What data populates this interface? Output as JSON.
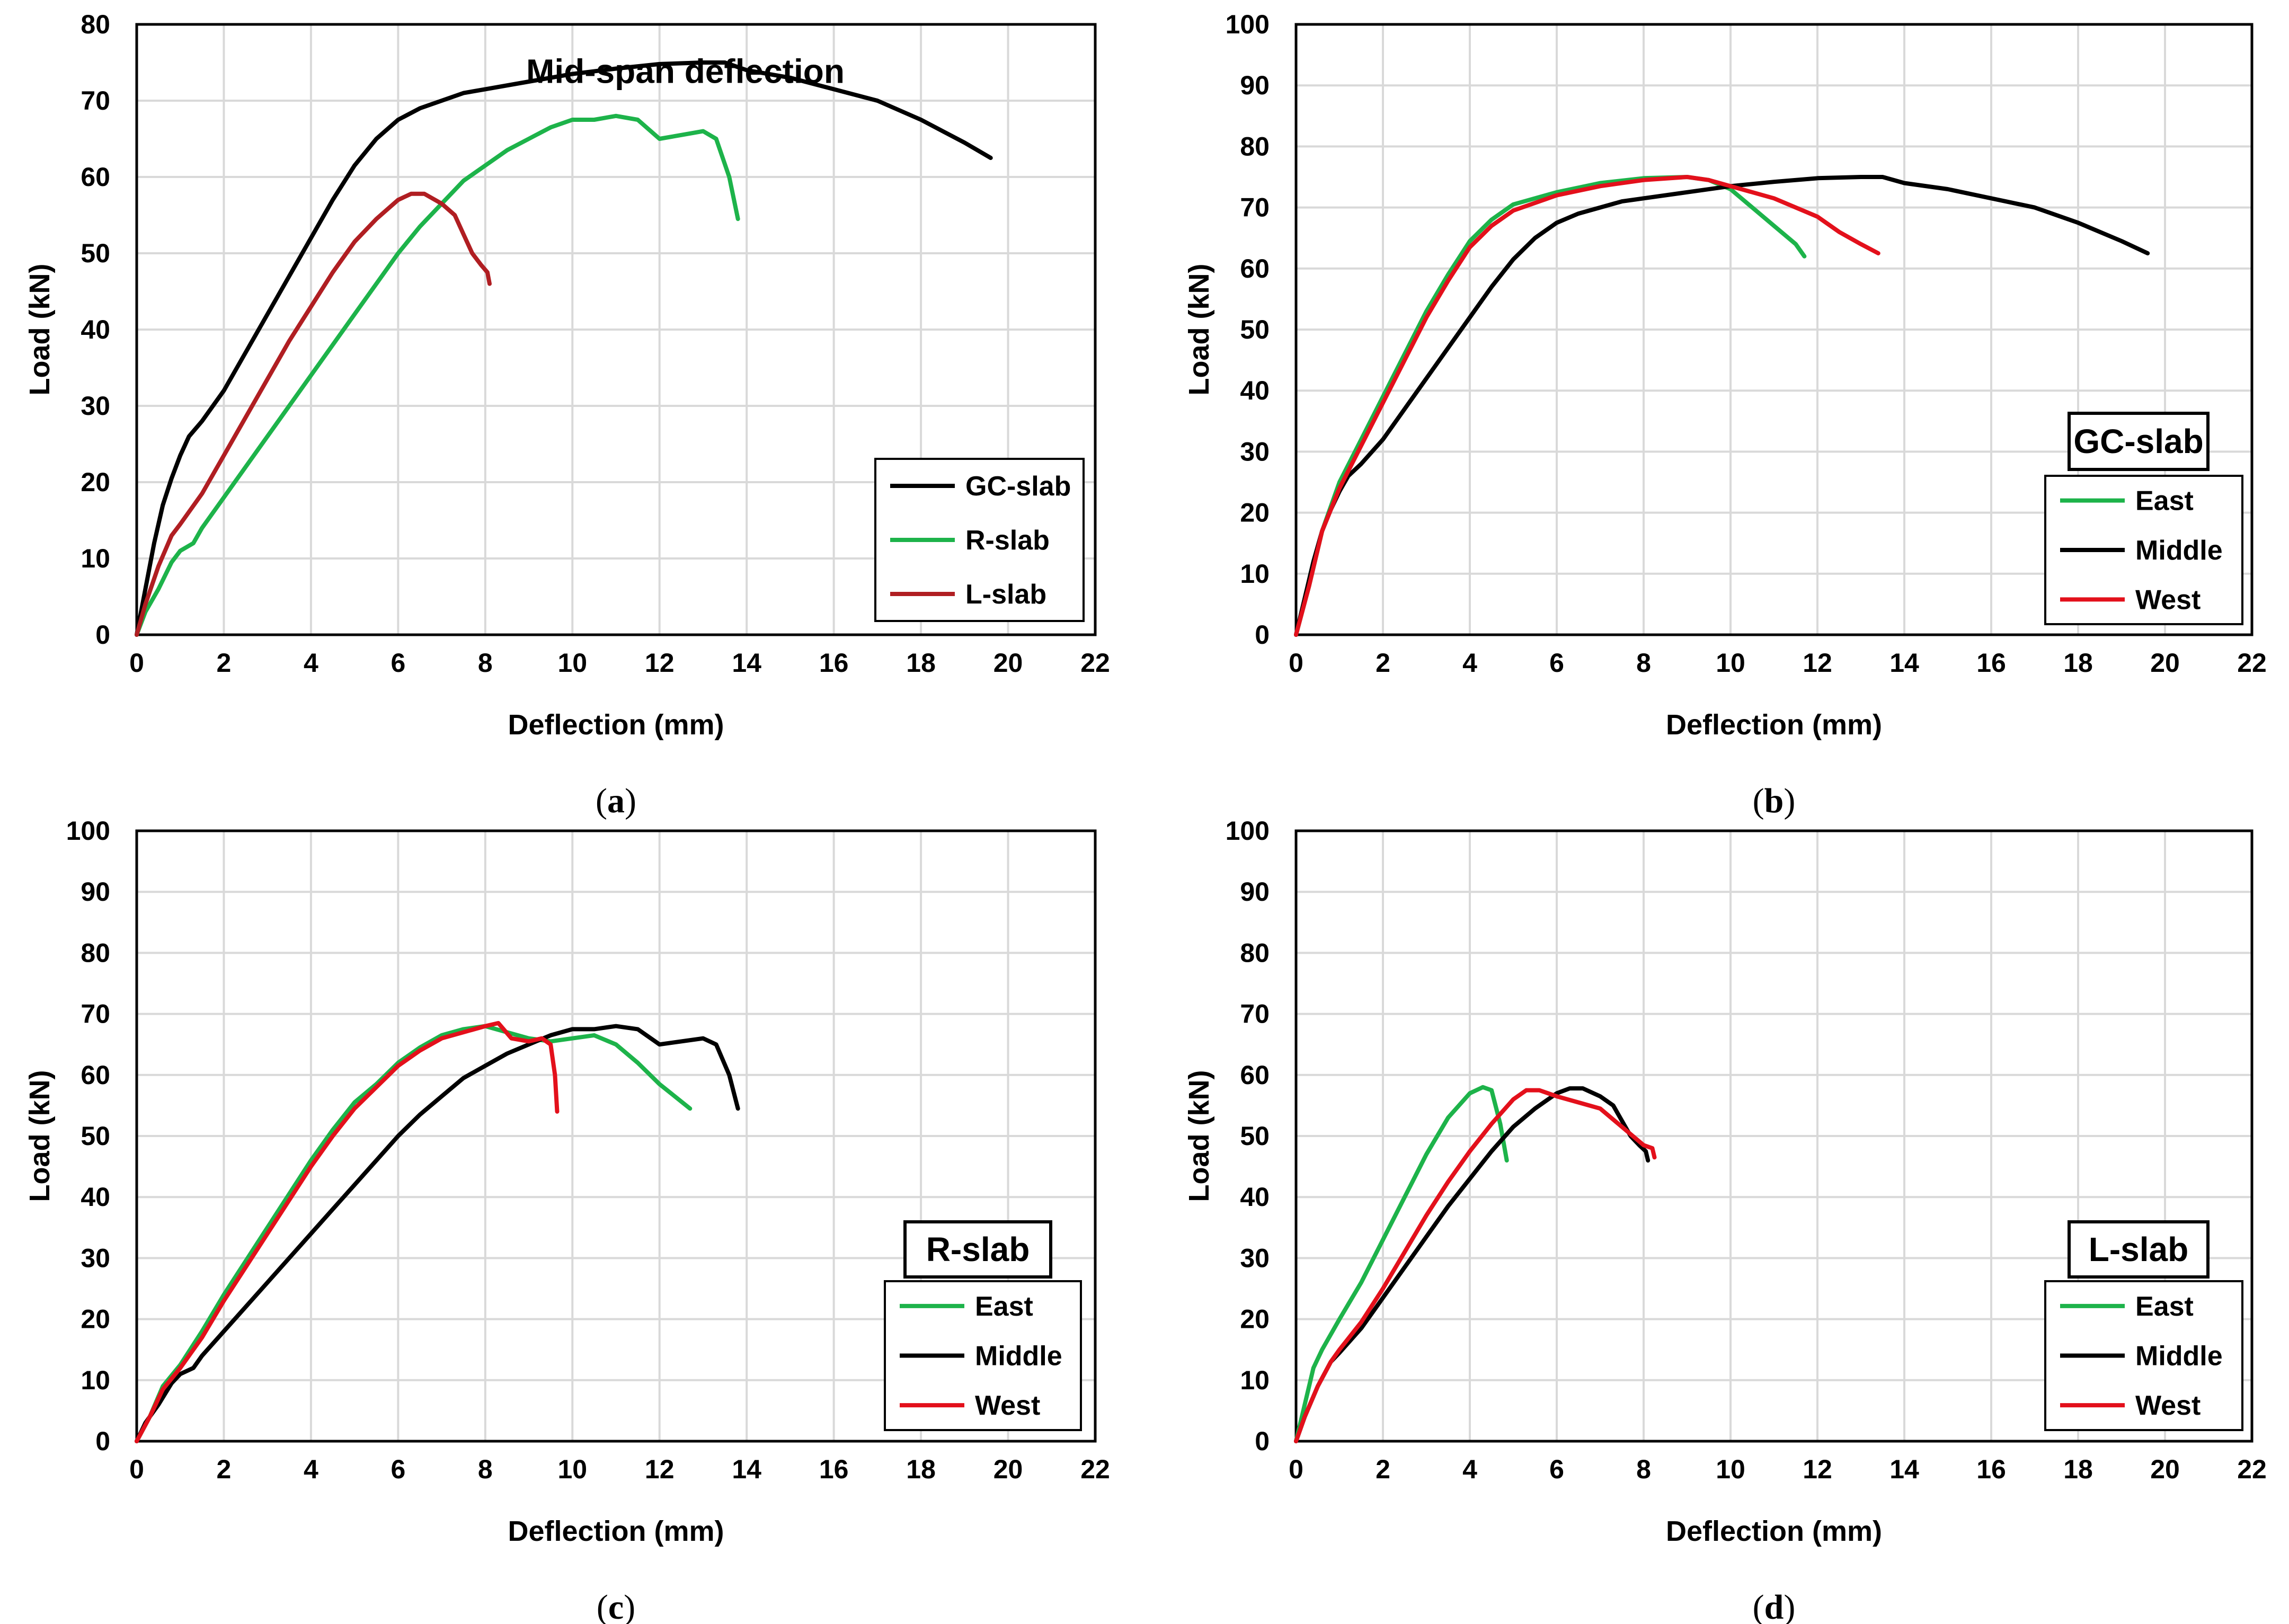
{
  "colors": {
    "black": "#000000",
    "green": "#1db34a",
    "red": "#e3101b",
    "darkred": "#b01e22",
    "grid": "#d9d9d9"
  },
  "chart_data": [
    {
      "id": "a",
      "caption": {
        "open": "(",
        "letter": "a",
        "close": ")"
      },
      "type": "line",
      "title": "Mid-span deflection",
      "xlabel": "Deflection (mm)",
      "ylabel": "Load (kN)",
      "xlim": [
        0,
        22
      ],
      "ylim": [
        0,
        80
      ],
      "xticks": [
        "0",
        "2",
        "4",
        "6",
        "8",
        "10",
        "12",
        "14",
        "16",
        "18",
        "20",
        "22"
      ],
      "yticks": [
        "0",
        "10",
        "20",
        "30",
        "40",
        "50",
        "60",
        "70",
        "80"
      ],
      "legend": "bottom-right",
      "series": [
        {
          "name": "GC-slab",
          "color": "#000000",
          "x": [
            0,
            0.2,
            0.4,
            0.6,
            0.8,
            1,
            1.2,
            1.5,
            2,
            2.5,
            3,
            3.5,
            4,
            4.5,
            5,
            5.5,
            6,
            6.5,
            7,
            7.5,
            8,
            9,
            10,
            11,
            12,
            13,
            13.5,
            14,
            15,
            16,
            17,
            18,
            19,
            19.6
          ],
          "y": [
            0,
            6,
            12,
            17,
            20.5,
            23.5,
            26,
            28,
            32,
            37,
            42,
            47,
            52,
            57,
            61.5,
            65,
            67.5,
            69,
            70,
            71,
            71.5,
            72.5,
            73.5,
            74.2,
            74.8,
            75,
            75,
            74,
            73,
            71.5,
            70,
            67.5,
            64.5,
            62.5
          ]
        },
        {
          "name": "R-slab",
          "color": "#1db34a",
          "x": [
            0,
            0.2,
            0.5,
            0.8,
            1,
            1.3,
            1.5,
            2,
            2.5,
            3,
            3.5,
            4,
            4.5,
            5,
            5.5,
            6,
            6.5,
            7,
            7.5,
            8,
            8.5,
            9,
            9.5,
            10,
            10.5,
            11,
            11.5,
            12,
            12.5,
            13,
            13.3,
            13.6,
            13.8
          ],
          "y": [
            0,
            3,
            6,
            9.5,
            11,
            12,
            14,
            18,
            22,
            26,
            30,
            34,
            38,
            42,
            46,
            50,
            53.5,
            56.5,
            59.5,
            61.5,
            63.5,
            65,
            66.5,
            67.5,
            67.5,
            68,
            67.5,
            65,
            65.5,
            66,
            65,
            60,
            54.5
          ]
        },
        {
          "name": "L-slab",
          "color": "#b01e22",
          "x": [
            0,
            0.2,
            0.5,
            0.8,
            1,
            1.5,
            2,
            2.5,
            3,
            3.5,
            4,
            4.5,
            5,
            5.5,
            6,
            6.3,
            6.6,
            7,
            7.3,
            7.5,
            7.7,
            7.9,
            8.05,
            8.1
          ],
          "y": [
            0,
            4,
            9,
            13,
            14.5,
            18.5,
            23.5,
            28.5,
            33.5,
            38.5,
            43,
            47.5,
            51.5,
            54.5,
            57,
            57.8,
            57.8,
            56.5,
            55,
            52.5,
            50,
            48.5,
            47.5,
            46
          ]
        }
      ]
    },
    {
      "id": "b",
      "caption": {
        "open": "(",
        "letter": "b",
        "close": ")"
      },
      "type": "line",
      "title": "GC-slab",
      "xlabel": "Deflection (mm)",
      "ylabel": "Load (kN)",
      "xlim": [
        0,
        22
      ],
      "ylim": [
        0,
        100
      ],
      "xticks": [
        "0",
        "2",
        "4",
        "6",
        "8",
        "10",
        "12",
        "14",
        "16",
        "18",
        "20",
        "22"
      ],
      "yticks": [
        "0",
        "10",
        "20",
        "30",
        "40",
        "50",
        "60",
        "70",
        "80",
        "90",
        "100"
      ],
      "legend": "bottom-right",
      "series": [
        {
          "name": "East",
          "color": "#1db34a",
          "x": [
            0,
            0.3,
            0.6,
            1,
            1.5,
            2,
            2.5,
            3,
            3.5,
            4,
            4.5,
            5,
            6,
            7,
            8,
            9,
            9.5,
            10,
            10.5,
            11,
            11.5,
            11.7
          ],
          "y": [
            0,
            8,
            17,
            25,
            32,
            39,
            46,
            53,
            59,
            64.5,
            68,
            70.5,
            72.5,
            74,
            74.8,
            75,
            74.5,
            73,
            70,
            67,
            64,
            62
          ]
        },
        {
          "name": "Middle",
          "color": "#000000",
          "x": [
            0,
            0.2,
            0.4,
            0.6,
            0.8,
            1,
            1.2,
            1.5,
            2,
            2.5,
            3,
            3.5,
            4,
            4.5,
            5,
            5.5,
            6,
            6.5,
            7,
            7.5,
            8,
            9,
            10,
            11,
            12,
            13,
            13.5,
            14,
            15,
            16,
            17,
            18,
            19,
            19.6
          ],
          "y": [
            0,
            6,
            12,
            17,
            20.5,
            23.5,
            26,
            28,
            32,
            37,
            42,
            47,
            52,
            57,
            61.5,
            65,
            67.5,
            69,
            70,
            71,
            71.5,
            72.5,
            73.5,
            74.2,
            74.8,
            75,
            75,
            74,
            73,
            71.5,
            70,
            67.5,
            64.5,
            62.5
          ]
        },
        {
          "name": "West",
          "color": "#e3101b",
          "x": [
            0,
            0.3,
            0.6,
            1,
            1.5,
            2,
            2.5,
            3,
            3.5,
            4,
            4.5,
            5,
            6,
            7,
            8,
            9,
            9.5,
            10,
            11,
            12,
            12.5,
            13,
            13.4
          ],
          "y": [
            0,
            8,
            17,
            24,
            31,
            38,
            45,
            52,
            58,
            63.5,
            67,
            69.5,
            72,
            73.5,
            74.5,
            75,
            74.5,
            73.5,
            71.5,
            68.5,
            66,
            64,
            62.5
          ]
        }
      ]
    },
    {
      "id": "c",
      "caption": {
        "open": "(",
        "letter": "c",
        "close": ")"
      },
      "type": "line",
      "title": "R-slab",
      "xlabel": "Deflection (mm)",
      "ylabel": "Load (kN)",
      "xlim": [
        0,
        22
      ],
      "ylim": [
        0,
        100
      ],
      "xticks": [
        "0",
        "2",
        "4",
        "6",
        "8",
        "10",
        "12",
        "14",
        "16",
        "18",
        "20",
        "22"
      ],
      "yticks": [
        "0",
        "10",
        "20",
        "30",
        "40",
        "50",
        "60",
        "70",
        "80",
        "90",
        "100"
      ],
      "legend": "bottom-right",
      "series": [
        {
          "name": "East",
          "color": "#1db34a",
          "x": [
            0,
            0.3,
            0.6,
            1,
            1.5,
            2,
            2.5,
            3,
            3.5,
            4,
            4.5,
            5,
            5.5,
            6,
            6.5,
            7,
            7.5,
            8,
            8.5,
            9,
            9.5,
            10,
            10.5,
            11,
            11.5,
            12,
            12.7
          ],
          "y": [
            0,
            4,
            9,
            12.5,
            18,
            24,
            29.5,
            35,
            40.5,
            46,
            51,
            55.5,
            58.5,
            62,
            64.5,
            66.5,
            67.5,
            68,
            67,
            66,
            65.5,
            66,
            66.5,
            65,
            62,
            58.5,
            54.5
          ]
        },
        {
          "name": "Middle",
          "color": "#000000",
          "x": [
            0,
            0.2,
            0.5,
            0.8,
            1,
            1.3,
            1.5,
            2,
            2.5,
            3,
            3.5,
            4,
            4.5,
            5,
            5.5,
            6,
            6.5,
            7,
            7.5,
            8,
            8.5,
            9,
            9.5,
            10,
            10.5,
            11,
            11.5,
            12,
            12.5,
            13,
            13.3,
            13.6,
            13.8
          ],
          "y": [
            0,
            3,
            6,
            9.5,
            11,
            12,
            14,
            18,
            22,
            26,
            30,
            34,
            38,
            42,
            46,
            50,
            53.5,
            56.5,
            59.5,
            61.5,
            63.5,
            65,
            66.5,
            67.5,
            67.5,
            68,
            67.5,
            65,
            65.5,
            66,
            65,
            60,
            54.5
          ]
        },
        {
          "name": "West",
          "color": "#e3101b",
          "x": [
            0,
            0.3,
            0.6,
            1,
            1.5,
            2,
            2.5,
            3,
            3.5,
            4,
            4.5,
            5,
            5.5,
            6,
            6.5,
            7,
            7.5,
            8,
            8.3,
            8.6,
            9,
            9.3,
            9.5,
            9.6,
            9.65
          ],
          "y": [
            0,
            4,
            8.5,
            12,
            17,
            23,
            28.5,
            34,
            39.5,
            45,
            50,
            54.5,
            58,
            61.5,
            64,
            66,
            67,
            68,
            68.5,
            66,
            65.5,
            66,
            65,
            60,
            54
          ]
        }
      ]
    },
    {
      "id": "d",
      "caption": {
        "open": "(",
        "letter": "d",
        "close": ")"
      },
      "type": "line",
      "title": "L-slab",
      "xlabel": "Deflection (mm)",
      "ylabel": "Load (kN)",
      "xlim": [
        0,
        22
      ],
      "ylim": [
        0,
        100
      ],
      "xticks": [
        "0",
        "2",
        "4",
        "6",
        "8",
        "10",
        "12",
        "14",
        "16",
        "18",
        "20",
        "22"
      ],
      "yticks": [
        "0",
        "10",
        "20",
        "30",
        "40",
        "50",
        "60",
        "70",
        "80",
        "90",
        "100"
      ],
      "legend": "bottom-right",
      "series": [
        {
          "name": "East",
          "color": "#1db34a",
          "x": [
            0,
            0.2,
            0.4,
            0.6,
            1,
            1.5,
            2,
            2.5,
            3,
            3.5,
            4,
            4.3,
            4.5,
            4.7,
            4.8,
            4.85
          ],
          "y": [
            0,
            6,
            12,
            15,
            20,
            26,
            33,
            40,
            47,
            53,
            57,
            58,
            57.5,
            52,
            48,
            46
          ]
        },
        {
          "name": "Middle",
          "color": "#000000",
          "x": [
            0,
            0.2,
            0.5,
            0.8,
            1,
            1.5,
            2,
            2.5,
            3,
            3.5,
            4,
            4.5,
            5,
            5.5,
            6,
            6.3,
            6.6,
            7,
            7.3,
            7.5,
            7.7,
            7.9,
            8.05,
            8.1
          ],
          "y": [
            0,
            4,
            9,
            13,
            14.5,
            18.5,
            23.5,
            28.5,
            33.5,
            38.5,
            43,
            47.5,
            51.5,
            54.5,
            57,
            57.8,
            57.8,
            56.5,
            55,
            52.5,
            50,
            48.5,
            47.5,
            46
          ]
        },
        {
          "name": "West",
          "color": "#e3101b",
          "x": [
            0,
            0.2,
            0.5,
            0.8,
            1,
            1.5,
            2,
            2.5,
            3,
            3.5,
            4,
            4.5,
            5,
            5.3,
            5.6,
            6,
            6.5,
            7,
            7.5,
            8,
            8.2,
            8.25
          ],
          "y": [
            0,
            4,
            9,
            13,
            15,
            19.5,
            25,
            31,
            37,
            42.5,
            47.5,
            52,
            56,
            57.5,
            57.5,
            56.5,
            55.5,
            54.5,
            51.5,
            48.5,
            48,
            46.5
          ]
        }
      ]
    }
  ]
}
